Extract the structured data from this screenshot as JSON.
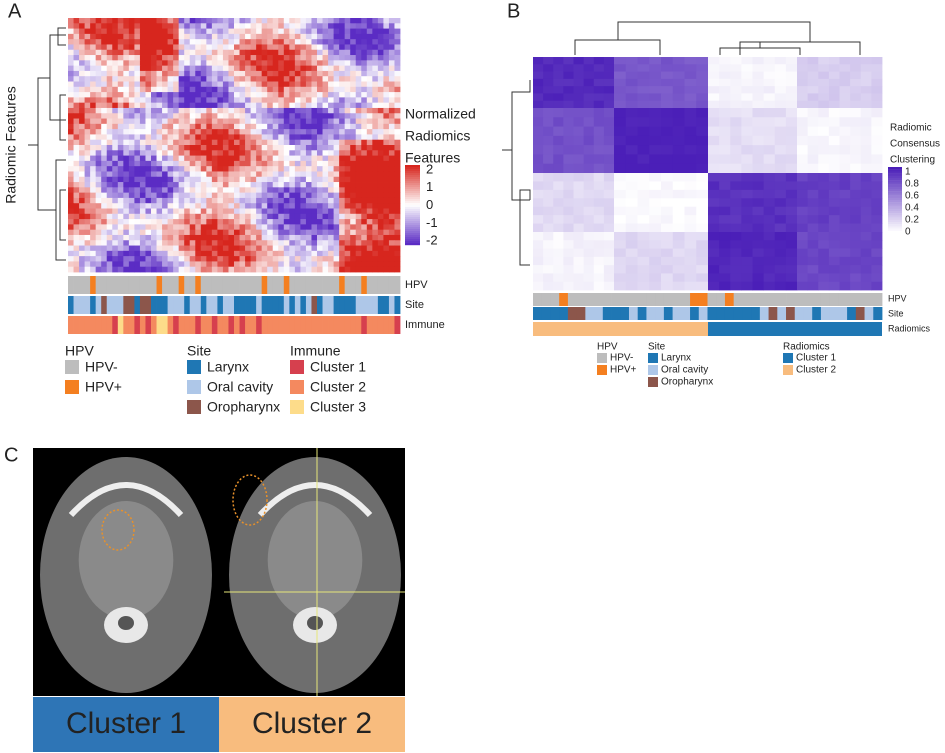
{
  "panels": {
    "a": {
      "label": "A",
      "y_axis_label": "Radiomic Features",
      "colorbar": {
        "title": [
          "Normalized",
          "Radiomics",
          "Features"
        ],
        "ticks": [
          "2",
          "1",
          "0",
          "-1",
          "-2"
        ]
      },
      "annotation_rows": [
        "HPV",
        "Site",
        "Immune"
      ],
      "legend": [
        {
          "title": "HPV",
          "items": [
            {
              "label": "HPV-",
              "color": "#bdbdbd"
            },
            {
              "label": "HPV+",
              "color": "#f47f20"
            }
          ]
        },
        {
          "title": "Site",
          "items": [
            {
              "label": "Larynx",
              "color": "#1f77b4"
            },
            {
              "label": "Oral cavity",
              "color": "#aec7e8"
            },
            {
              "label": "Oropharynx",
              "color": "#8c564b"
            }
          ]
        },
        {
          "title": "Immune",
          "items": [
            {
              "label": "Cluster 1",
              "color": "#d6404e"
            },
            {
              "label": "Cluster 2",
              "color": "#f4895f"
            },
            {
              "label": "Cluster 3",
              "color": "#fddc8a"
            }
          ]
        }
      ]
    },
    "b": {
      "label": "B",
      "colorbar": {
        "title": [
          "Radiomic",
          "Consensus",
          "Clustering"
        ],
        "ticks": [
          "1",
          "0.8",
          "0.6",
          "0.4",
          "0.2",
          "0"
        ]
      },
      "annotation_rows": [
        "HPV",
        "Site",
        "Radiomics"
      ],
      "legend": [
        {
          "title": "HPV",
          "items": [
            {
              "label": "HPV-",
              "color": "#bdbdbd"
            },
            {
              "label": "HPV+",
              "color": "#f47f20"
            }
          ]
        },
        {
          "title": "Site",
          "items": [
            {
              "label": "Larynx",
              "color": "#1f77b4"
            },
            {
              "label": "Oral cavity",
              "color": "#aec7e8"
            },
            {
              "label": "Oropharynx",
              "color": "#8c564b"
            }
          ]
        },
        {
          "title": "Radiomics",
          "items": [
            {
              "label": "Cluster 1",
              "color": "#1f77b4"
            },
            {
              "label": "Cluster 2",
              "color": "#f8bc7e"
            }
          ]
        }
      ]
    },
    "c": {
      "label": "C",
      "clusters": [
        {
          "label": "Cluster 1",
          "color": "#2e75b6"
        },
        {
          "label": "Cluster 2",
          "color": "#f8bc7e"
        }
      ]
    }
  }
}
